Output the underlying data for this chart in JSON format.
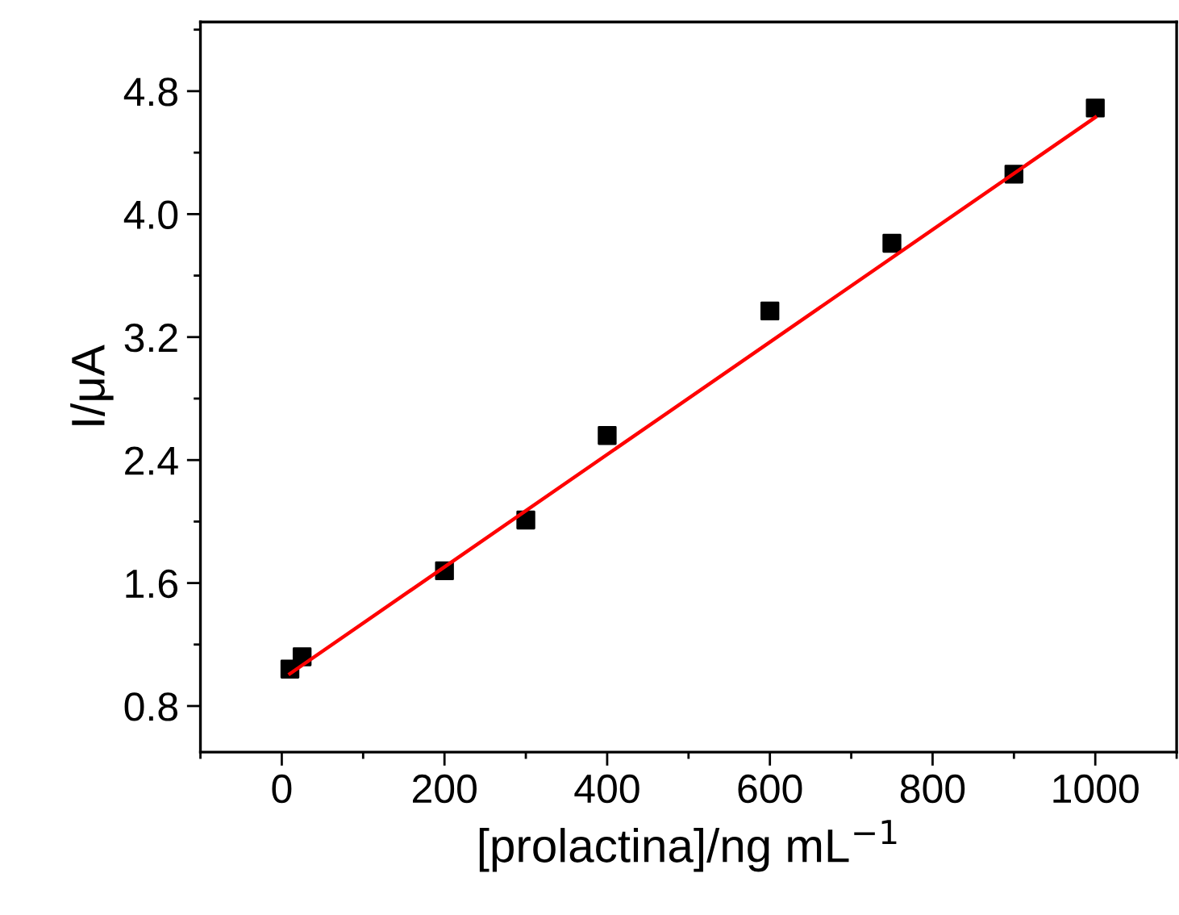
{
  "chart_data": {
    "type": "scatter",
    "xlabel": "[prolactina]/ng mL$^{−1}$",
    "ylabel": "I/μA",
    "xlim": [
      -100,
      1100
    ],
    "xticks": [
      0,
      200,
      400,
      600,
      800,
      1000
    ],
    "ylim": [
      0.5,
      5.25
    ],
    "yticks": [
      0.8,
      1.6,
      2.4,
      3.2,
      {
        "value": 4.0,
        "label": "4.0"
      },
      4.8
    ],
    "grid": false,
    "legend": false,
    "series": [
      {
        "color": "#000000",
        "marker": "square",
        "x": [
          10,
          25,
          200,
          300,
          400,
          600,
          750,
          900,
          1000
        ],
        "values": [
          1.04,
          1.12,
          1.68,
          2.01,
          2.56,
          3.37,
          3.81,
          4.26,
          4.69
        ]
      },
      {
        "type": "line",
        "color": "#ff0000",
        "marker": "none",
        "line_style": "solid",
        "x": [
          10,
          1000
        ],
        "values": [
          1.01,
          4.63
        ]
      }
    ]
  }
}
